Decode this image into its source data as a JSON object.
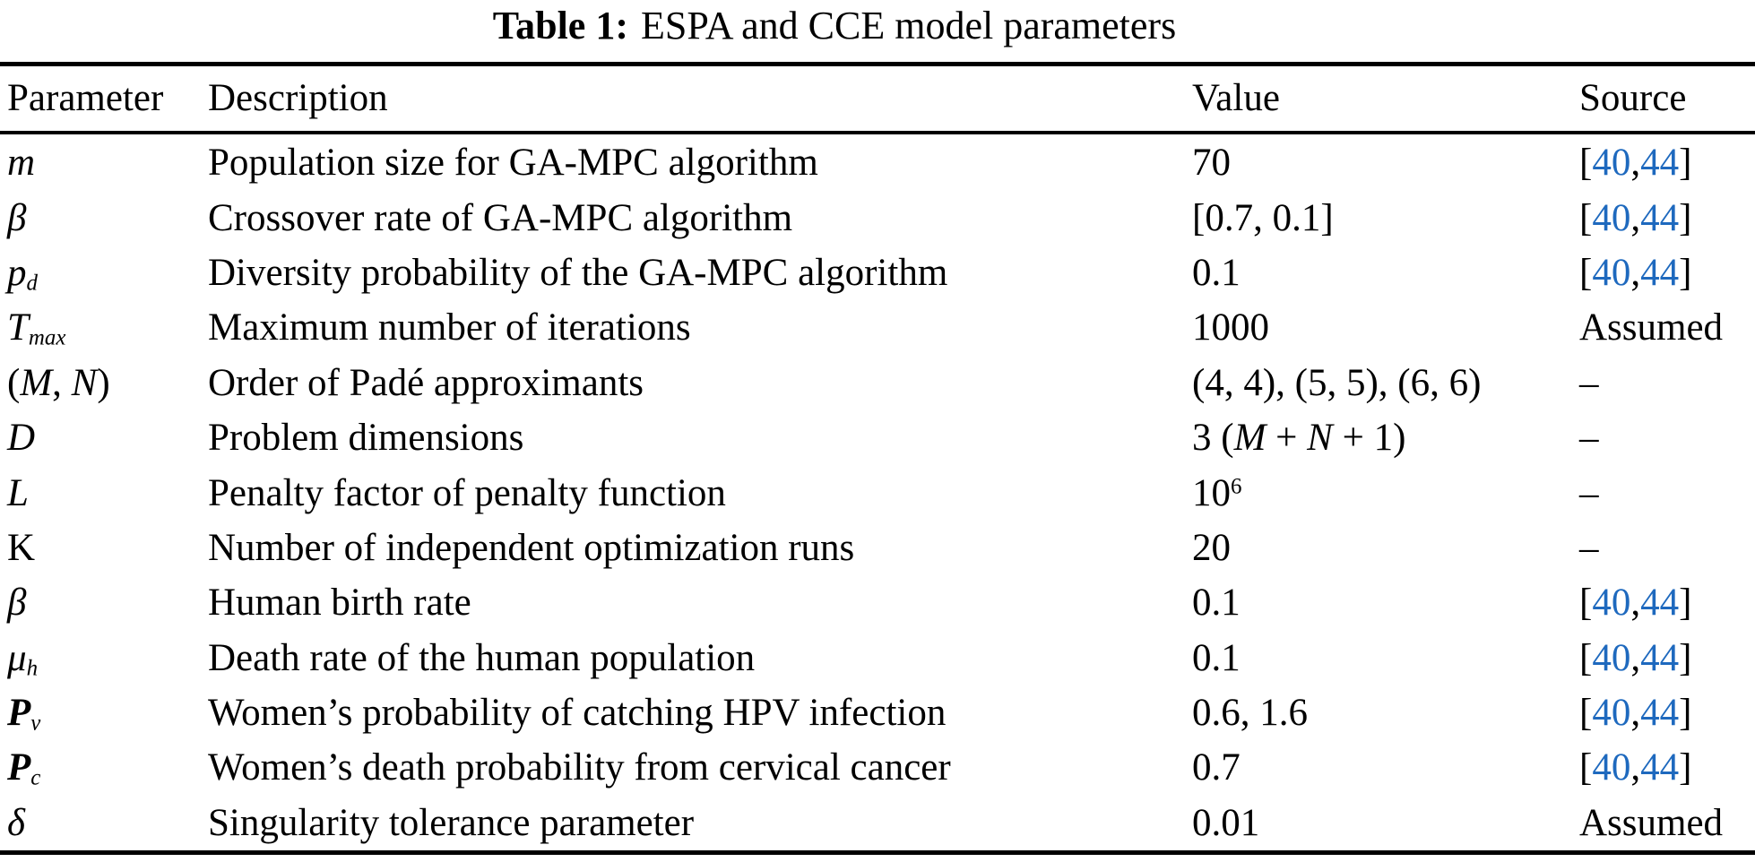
{
  "title": {
    "label": "Table 1:",
    "text": "ESPA and CCE model parameters"
  },
  "table": {
    "columns": [
      "Parameter",
      "Description",
      "Value",
      "Source"
    ],
    "rows": [
      {
        "param": [
          {
            "t": "m",
            "i": true
          }
        ],
        "desc": "Population size for GA-MPC algorithm",
        "value": [
          {
            "t": "70"
          }
        ],
        "source": [
          {
            "t": "["
          },
          {
            "t": "40",
            "cite": true
          },
          {
            "t": ","
          },
          {
            "t": "44",
            "cite": true
          },
          {
            "t": "]"
          }
        ]
      },
      {
        "param": [
          {
            "t": "β",
            "i": true
          }
        ],
        "desc": "Crossover rate of GA-MPC algorithm",
        "value": [
          {
            "t": "[0.7, 0.1]"
          }
        ],
        "source": [
          {
            "t": "["
          },
          {
            "t": "40",
            "cite": true
          },
          {
            "t": ","
          },
          {
            "t": "44",
            "cite": true
          },
          {
            "t": "]"
          }
        ]
      },
      {
        "param": [
          {
            "t": "p",
            "i": true
          },
          {
            "t": "d",
            "i": true,
            "sub": true
          }
        ],
        "desc": "Diversity probability of the GA-MPC algorithm",
        "value": [
          {
            "t": "0.1"
          }
        ],
        "source": [
          {
            "t": "["
          },
          {
            "t": "40",
            "cite": true
          },
          {
            "t": ","
          },
          {
            "t": "44",
            "cite": true
          },
          {
            "t": "]"
          }
        ]
      },
      {
        "param": [
          {
            "t": "T",
            "i": true
          },
          {
            "t": "max",
            "i": true,
            "sub": true
          }
        ],
        "desc": "Maximum number of iterations",
        "value": [
          {
            "t": "1000"
          }
        ],
        "source": [
          {
            "t": "Assumed"
          }
        ]
      },
      {
        "param": [
          {
            "t": "("
          },
          {
            "t": "M",
            "i": true
          },
          {
            "t": ", "
          },
          {
            "t": "N",
            "i": true
          },
          {
            "t": ")"
          }
        ],
        "desc": "Order of Padé approximants",
        "value": [
          {
            "t": "(4, 4), (5, 5), (6, 6)"
          }
        ],
        "source": [
          {
            "t": "–"
          }
        ]
      },
      {
        "param": [
          {
            "t": "D",
            "i": true
          }
        ],
        "desc": "Problem dimensions",
        "value": [
          {
            "t": "3 ("
          },
          {
            "t": "M",
            "i": true
          },
          {
            "t": " + "
          },
          {
            "t": "N",
            "i": true
          },
          {
            "t": " + 1)"
          }
        ],
        "source": [
          {
            "t": "–"
          }
        ]
      },
      {
        "param": [
          {
            "t": "L",
            "i": true
          }
        ],
        "desc": "Penalty factor of penalty function",
        "value": [
          {
            "t": "10"
          },
          {
            "t": "6",
            "sup": true
          }
        ],
        "source": [
          {
            "t": "–"
          }
        ]
      },
      {
        "param": [
          {
            "t": "K"
          }
        ],
        "desc": "Number of independent optimization runs",
        "value": [
          {
            "t": "20"
          }
        ],
        "source": [
          {
            "t": "–"
          }
        ]
      },
      {
        "param": [
          {
            "t": "β",
            "i": true
          }
        ],
        "desc": "Human birth rate",
        "value": [
          {
            "t": "0.1"
          }
        ],
        "source": [
          {
            "t": "["
          },
          {
            "t": "40",
            "cite": true
          },
          {
            "t": ","
          },
          {
            "t": "44",
            "cite": true
          },
          {
            "t": "]"
          }
        ]
      },
      {
        "param": [
          {
            "t": "μ",
            "i": true
          },
          {
            "t": "h",
            "i": true,
            "sub": true
          }
        ],
        "desc": "Death rate of the human population",
        "value": [
          {
            "t": "0.1"
          }
        ],
        "source": [
          {
            "t": "["
          },
          {
            "t": "40",
            "cite": true
          },
          {
            "t": ","
          },
          {
            "t": "44",
            "cite": true
          },
          {
            "t": "]"
          }
        ]
      },
      {
        "param": [
          {
            "t": "P",
            "i": true,
            "b": true
          },
          {
            "t": "v",
            "i": true,
            "sub": true
          }
        ],
        "desc": "Women’s probability of catching HPV infection",
        "value": [
          {
            "t": "0.6, 1.6"
          }
        ],
        "source": [
          {
            "t": "["
          },
          {
            "t": "40",
            "cite": true
          },
          {
            "t": ","
          },
          {
            "t": "44",
            "cite": true
          },
          {
            "t": "]"
          }
        ]
      },
      {
        "param": [
          {
            "t": "P",
            "i": true,
            "b": true
          },
          {
            "t": "c",
            "i": true,
            "sub": true
          }
        ],
        "desc": "Women’s death probability from cervical cancer",
        "value": [
          {
            "t": "0.7"
          }
        ],
        "source": [
          {
            "t": "["
          },
          {
            "t": "40",
            "cite": true
          },
          {
            "t": ","
          },
          {
            "t": "44",
            "cite": true
          },
          {
            "t": "]"
          }
        ]
      },
      {
        "param": [
          {
            "t": "δ",
            "i": true
          }
        ],
        "desc": "Singularity tolerance parameter",
        "value": [
          {
            "t": "0.01"
          }
        ],
        "source": [
          {
            "t": "Assumed"
          }
        ]
      }
    ]
  },
  "colors": {
    "citation_blue": "#1e69be",
    "text_black": "#000000"
  }
}
